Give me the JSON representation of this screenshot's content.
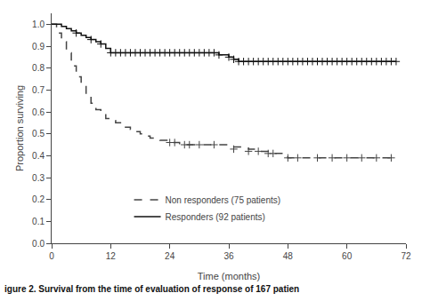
{
  "chart_data": {
    "type": "line",
    "xlabel": "Time (months)",
    "ylabel": "Proportion surviving",
    "caption": "igure 2. Survival from the time of evaluation of response of 167 patien",
    "xlim": [
      0,
      72
    ],
    "ylim": [
      0.0,
      1.05
    ],
    "xticks": [
      0,
      12,
      24,
      36,
      48,
      60,
      72
    ],
    "yticks": [
      {
        "value": 0.0,
        "label": "0.0"
      },
      0.1,
      0.2,
      0.3,
      0.4,
      0.5,
      0.6,
      0.7,
      0.8,
      0.9,
      {
        "value": 1.0,
        "label": "1.0"
      }
    ],
    "grid": false,
    "legend": "lower left",
    "series": [
      {
        "name": "Non responders (75 patients)",
        "type": "line",
        "color": "#444444",
        "line_style": "dashed",
        "x": [
          0,
          1,
          1,
          2,
          2,
          3,
          3,
          4,
          4,
          5,
          5,
          6,
          6,
          7,
          7,
          8,
          8,
          9,
          9,
          10,
          10,
          11,
          11,
          12,
          12,
          13,
          13,
          14,
          14,
          15,
          15,
          16,
          16,
          17,
          17,
          18,
          18,
          19,
          19,
          20,
          20,
          21,
          21,
          22,
          22,
          23,
          23,
          24,
          24,
          26,
          26,
          28,
          28,
          30,
          30,
          33,
          33,
          36,
          36,
          40,
          40,
          42,
          42,
          44,
          44,
          45,
          45,
          48,
          48,
          69
        ],
        "values": [
          1.0,
          1.0,
          0.96,
          0.96,
          0.92,
          0.92,
          0.87,
          0.87,
          0.81,
          0.81,
          0.76,
          0.76,
          0.72,
          0.72,
          0.68,
          0.68,
          0.64,
          0.64,
          0.61,
          0.61,
          0.59,
          0.59,
          0.57,
          0.57,
          0.56,
          0.56,
          0.55,
          0.55,
          0.54,
          0.54,
          0.53,
          0.53,
          0.52,
          0.52,
          0.51,
          0.51,
          0.5,
          0.5,
          0.49,
          0.49,
          0.48,
          0.48,
          0.48,
          0.48,
          0.47,
          0.47,
          0.47,
          0.47,
          0.46,
          0.46,
          0.45,
          0.45,
          0.45,
          0.45,
          0.45,
          0.45,
          0.45,
          0.45,
          0.44,
          0.44,
          0.43,
          0.43,
          0.42,
          0.42,
          0.41,
          0.41,
          0.41,
          0.41,
          0.39,
          0.39
        ]
      },
      {
        "name": "Responders (92 patients)",
        "type": "line",
        "color": "#111111",
        "line_style": "solid",
        "x": [
          0,
          2,
          2,
          3,
          3,
          4,
          4,
          5,
          5,
          6,
          6,
          7,
          7,
          8,
          8,
          9,
          9,
          10,
          10,
          11,
          11,
          12,
          12,
          15,
          15,
          18,
          18,
          24,
          24,
          30,
          30,
          34,
          34,
          36,
          36,
          37,
          37,
          38,
          38,
          40,
          40,
          48,
          48,
          70
        ],
        "values": [
          1.0,
          1.0,
          0.99,
          0.99,
          0.98,
          0.98,
          0.97,
          0.97,
          0.96,
          0.96,
          0.95,
          0.95,
          0.94,
          0.94,
          0.93,
          0.93,
          0.92,
          0.92,
          0.91,
          0.91,
          0.89,
          0.89,
          0.87,
          0.87,
          0.87,
          0.87,
          0.87,
          0.87,
          0.87,
          0.87,
          0.87,
          0.87,
          0.86,
          0.86,
          0.85,
          0.85,
          0.84,
          0.84,
          0.83,
          0.83,
          0.83,
          0.83,
          0.83,
          0.83
        ]
      },
      {
        "type": "scatter",
        "color": "#444444",
        "marker": "plus",
        "x": [
          24,
          25,
          27,
          28,
          30,
          33,
          37,
          40,
          42,
          44,
          45,
          48,
          50,
          54,
          57,
          60,
          63,
          66,
          69
        ],
        "values": [
          0.46,
          0.46,
          0.45,
          0.45,
          0.45,
          0.45,
          0.43,
          0.42,
          0.42,
          0.41,
          0.41,
          0.39,
          0.39,
          0.39,
          0.39,
          0.39,
          0.39,
          0.39,
          0.39
        ]
      },
      {
        "type": "scatter",
        "color": "#111111",
        "marker": "plus",
        "x": [
          5,
          8,
          10,
          12,
          13,
          14,
          15,
          16,
          17,
          18,
          19,
          20,
          21,
          22,
          23,
          24,
          25,
          26,
          27,
          28,
          29,
          30,
          31,
          32,
          33,
          34,
          36,
          37,
          38,
          39,
          40,
          41,
          42,
          43,
          44,
          45,
          46,
          47,
          48,
          49,
          50,
          51,
          52,
          53,
          54,
          55,
          56,
          57,
          58,
          59,
          60,
          61,
          62,
          63,
          64,
          65,
          66,
          67,
          68,
          69,
          70
        ],
        "values": [
          0.96,
          0.93,
          0.91,
          0.87,
          0.87,
          0.87,
          0.87,
          0.87,
          0.87,
          0.87,
          0.87,
          0.87,
          0.87,
          0.87,
          0.87,
          0.87,
          0.87,
          0.87,
          0.87,
          0.87,
          0.87,
          0.87,
          0.87,
          0.87,
          0.87,
          0.86,
          0.85,
          0.84,
          0.83,
          0.83,
          0.83,
          0.83,
          0.83,
          0.83,
          0.83,
          0.83,
          0.83,
          0.83,
          0.83,
          0.83,
          0.83,
          0.83,
          0.83,
          0.83,
          0.83,
          0.83,
          0.83,
          0.83,
          0.83,
          0.83,
          0.83,
          0.83,
          0.83,
          0.83,
          0.83,
          0.83,
          0.83,
          0.83,
          0.83,
          0.83,
          0.83
        ]
      }
    ]
  }
}
